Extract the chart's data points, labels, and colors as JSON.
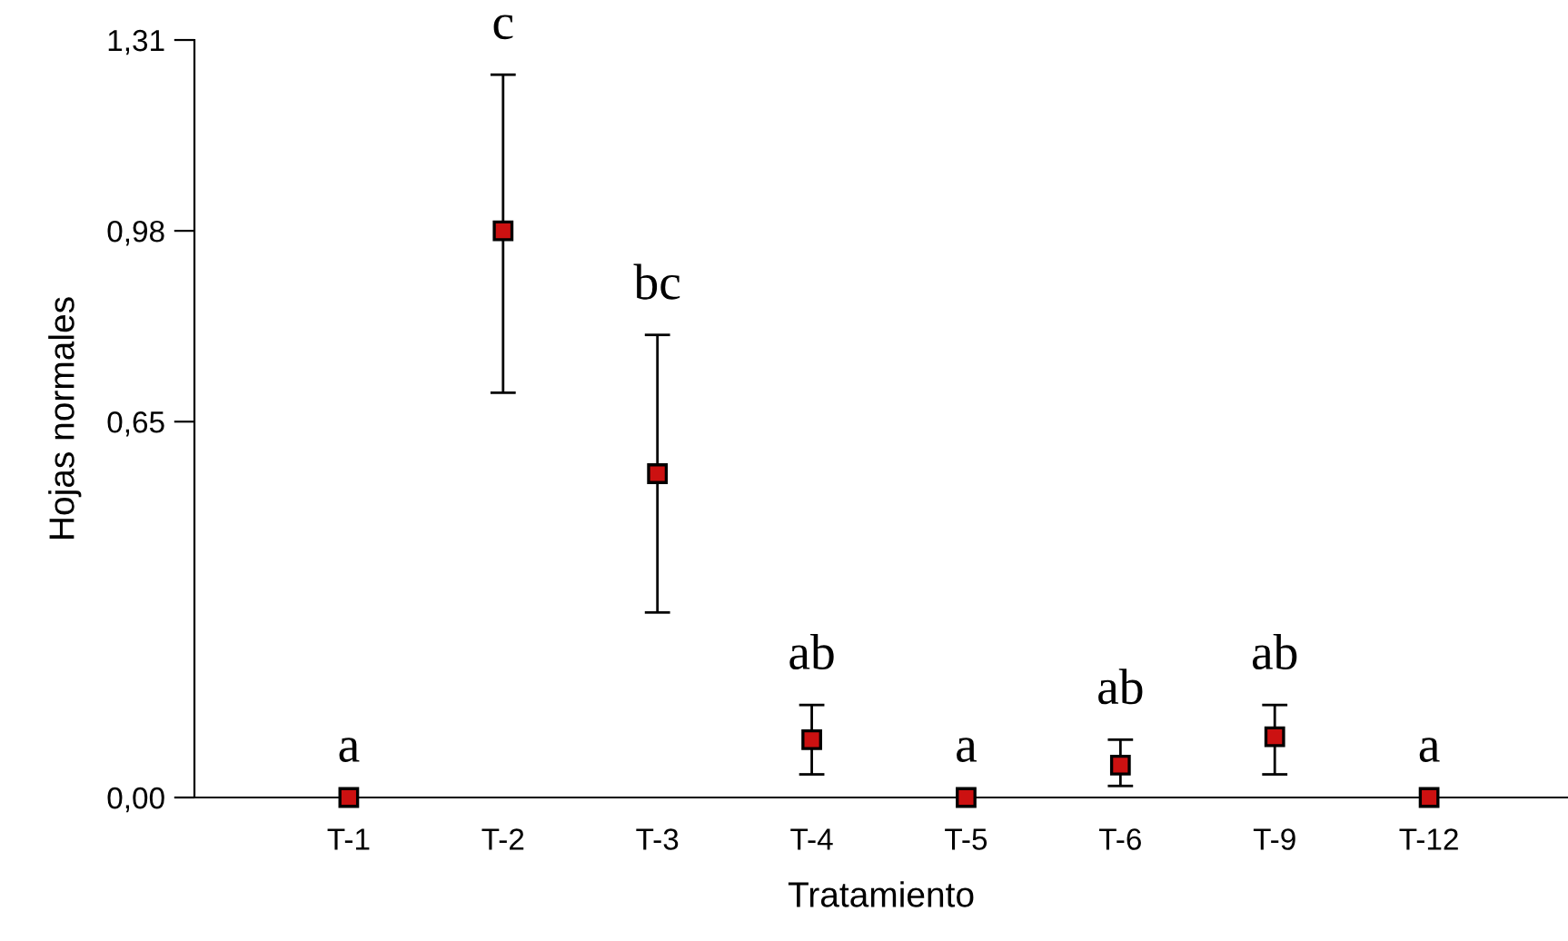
{
  "chart_data": {
    "type": "scatter",
    "xlabel": "Tratamiento",
    "ylabel": "Hojas normales",
    "categories": [
      "T-1",
      "T-2",
      "T-3",
      "T-4",
      "T-5",
      "T-6",
      "T-9",
      "T-12"
    ],
    "values": [
      0,
      0.98,
      0.56,
      0.1,
      0,
      0.056,
      0.105,
      0
    ],
    "errors": [
      null,
      [
        0.7,
        1.25
      ],
      [
        0.32,
        0.8
      ],
      [
        0.04,
        0.16
      ],
      null,
      [
        0.02,
        0.1
      ],
      [
        0.04,
        0.16
      ],
      null
    ],
    "color": "#cc1111",
    "marker": "square",
    "grid": false,
    "legend": false,
    "ylim": [
      0,
      1.31
    ],
    "yticks": [
      {
        "value": 0,
        "label": "0,00"
      },
      {
        "value": 0.65,
        "label": "0,65"
      },
      {
        "value": 0.98,
        "label": "0,98"
      },
      {
        "value": 1.31,
        "label": "1,31"
      }
    ],
    "annotations": [
      {
        "text": "a",
        "x": "T-1",
        "y": 0
      },
      {
        "text": "c",
        "x": "T-2",
        "y": 1.25
      },
      {
        "text": "bc",
        "x": "T-3",
        "y": 0.8
      },
      {
        "text": "ab",
        "x": "T-4",
        "y": 0.16
      },
      {
        "text": "a",
        "x": "T-5",
        "y": 0
      },
      {
        "text": "ab",
        "x": "T-6",
        "y": 0.1
      },
      {
        "text": "ab",
        "x": "T-9",
        "y": 0.16
      },
      {
        "text": "a",
        "x": "T-12",
        "y": 0
      }
    ]
  }
}
